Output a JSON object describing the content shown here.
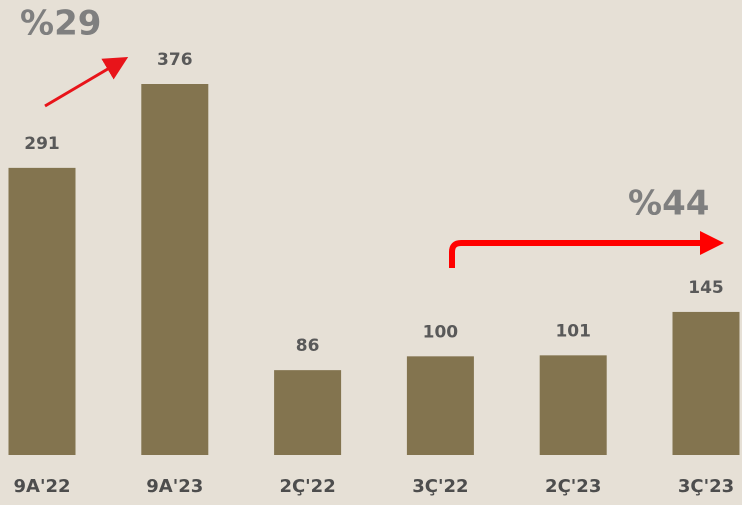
{
  "chart_data": {
    "type": "bar",
    "categories": [
      "9A'22",
      "9A'23",
      "2Ç'22",
      "3Ç'22",
      "2Ç'23",
      "3Ç'23"
    ],
    "values": [
      291,
      376,
      86,
      100,
      101,
      145
    ],
    "color": "#83744f",
    "annotations": [
      "%29",
      "%44"
    ]
  }
}
